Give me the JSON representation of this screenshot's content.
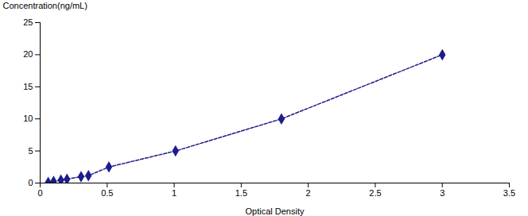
{
  "chart_data": {
    "type": "line",
    "x": [
      0.06,
      0.1,
      0.155,
      0.2,
      0.305,
      0.36,
      0.513,
      1.01,
      1.8,
      3.0
    ],
    "values": [
      0.1,
      0.25,
      0.45,
      0.6,
      1.0,
      1.15,
      2.5,
      5.0,
      10.0,
      20.0
    ],
    "xlabel": "Optical Density",
    "ylabel": "Concentration(ng/mL)",
    "xlim": [
      0,
      3.5
    ],
    "ylim": [
      0,
      25
    ],
    "xticks": [
      0,
      0.5,
      1,
      1.5,
      2,
      2.5,
      3,
      3.5
    ],
    "yticks": [
      0,
      5,
      10,
      15,
      20,
      25
    ],
    "color": "#1C1C8C",
    "marker": "diamond",
    "line_style": "dashed",
    "grid": false
  }
}
